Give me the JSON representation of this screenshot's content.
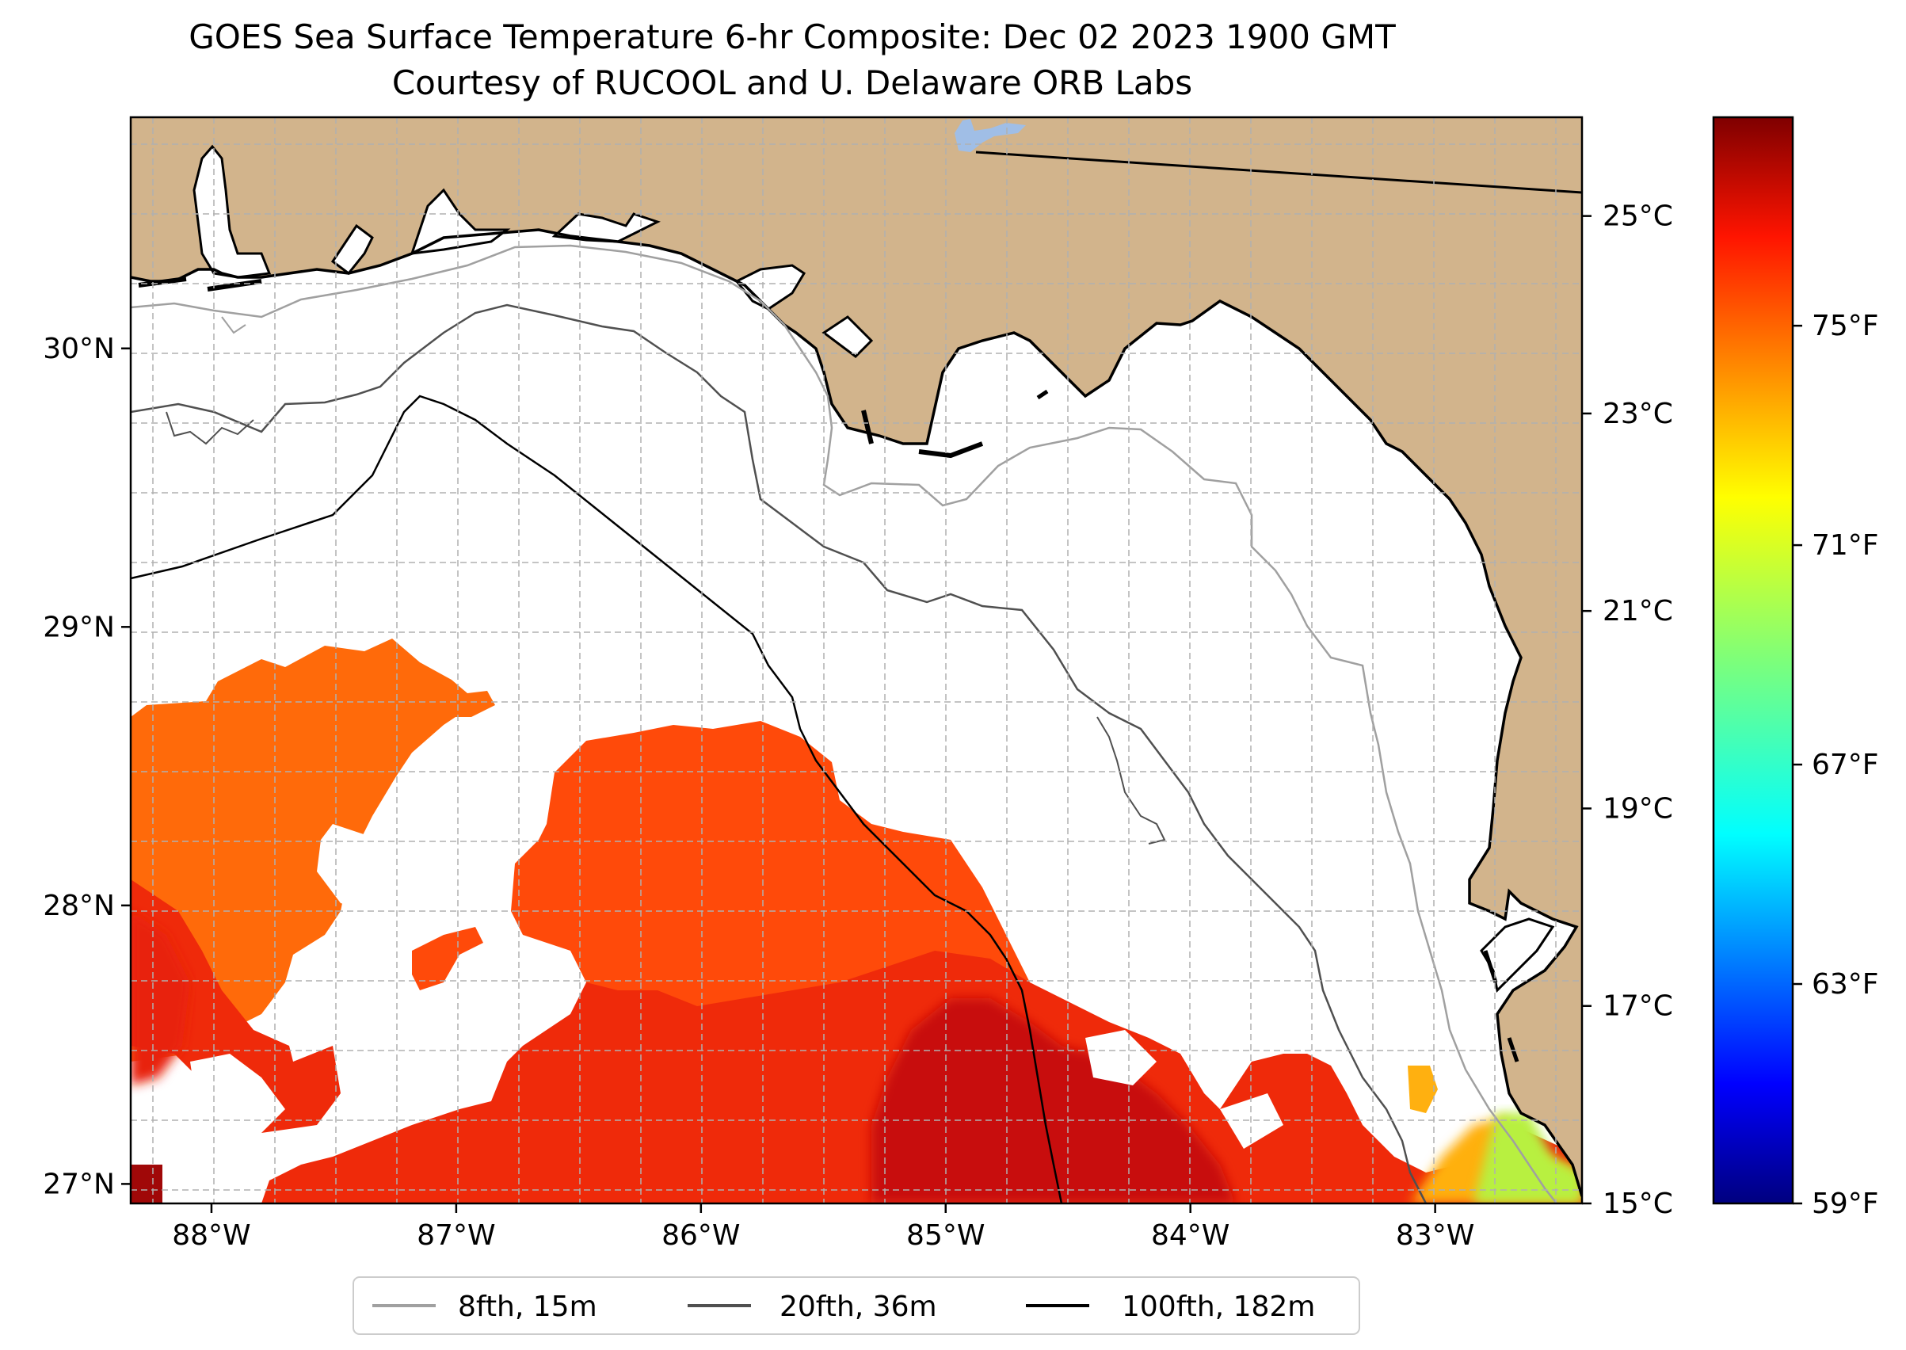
{
  "title": {
    "line1": "GOES Sea Surface Temperature 6-hr Composite: Dec 02 2023 1900 GMT",
    "line2": "Courtesy of RUCOOL and U. Delaware ORB Labs"
  },
  "map": {
    "projection": "lon/lat",
    "lon_range": [
      -88.33,
      -82.4
    ],
    "lat_range": [
      26.93,
      30.83
    ],
    "lat_ticks": [
      {
        "value": 30,
        "label": "30°N"
      },
      {
        "value": 29,
        "label": "29°N"
      },
      {
        "value": 28,
        "label": "28°N"
      },
      {
        "value": 27,
        "label": "27°N"
      }
    ],
    "lon_ticks": [
      {
        "value": -88,
        "label": "88°W"
      },
      {
        "value": -87,
        "label": "87°W"
      },
      {
        "value": -86,
        "label": "86°W"
      },
      {
        "value": -85,
        "label": "85°W"
      },
      {
        "value": -84,
        "label": "84°W"
      },
      {
        "value": -83,
        "label": "83°W"
      }
    ],
    "land_color": "#d2b48c",
    "lake_color": "#a0bee6",
    "gridlines": true
  },
  "colorbar": {
    "colormap": "jet",
    "celsius_range": [
      15,
      26
    ],
    "celsius_ticks": [
      {
        "value": 25,
        "label": "25°C"
      },
      {
        "value": 23,
        "label": "23°C"
      },
      {
        "value": 21,
        "label": "21°C"
      },
      {
        "value": 19,
        "label": "19°C"
      },
      {
        "value": 17,
        "label": "17°C"
      },
      {
        "value": 15,
        "label": "15°C"
      }
    ],
    "fahrenheit_ticks": [
      {
        "value": 75,
        "label": "75°F"
      },
      {
        "value": 71,
        "label": "71°F"
      },
      {
        "value": 67,
        "label": "67°F"
      },
      {
        "value": 63,
        "label": "63°F"
      },
      {
        "value": 59,
        "label": "59°F"
      }
    ]
  },
  "legend": {
    "placement": "bottom-center",
    "items": [
      {
        "label": "8fth, 15m",
        "color": "#a0a0a0"
      },
      {
        "label": "20fth, 36m",
        "color": "#505050"
      },
      {
        "label": "100fth, 182m",
        "color": "#000000"
      }
    ]
  },
  "sst_colors": {
    "orange": "#ff6a0a",
    "red_orange": "#ff4a0a",
    "red": "#ef2a0a",
    "dark_red": "#b80c08",
    "yellow_orange": "#ffb010",
    "yellow_green": "#b8f040"
  }
}
